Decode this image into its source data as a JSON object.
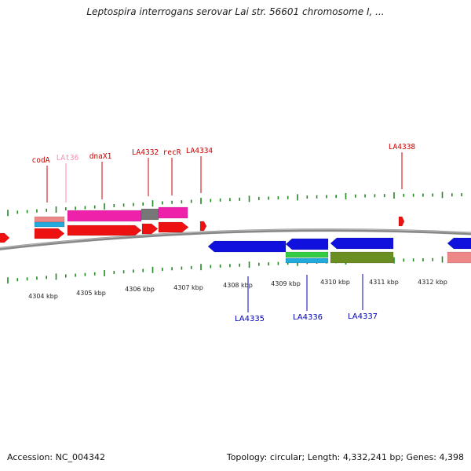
{
  "title": "Leptospira interrogans serovar Lai str. 56601 chromosome I, ...",
  "footer": {
    "accession": "Accession: NC_004342",
    "summary": "Topology: circular; Length: 4,332,241 bp; Genes: 4,398"
  },
  "colors": {
    "top_label": "#cc0000",
    "light_label": "#ff88bb",
    "bottom_label": "#0000bb",
    "tick": "#228822",
    "backbone": "#888888",
    "red_gene": "#ee1111",
    "pink_gene": "#ee22aa",
    "gray_gene": "#777777",
    "blue_gene": "#1111dd",
    "olive_gene": "#6b8e23",
    "green_gene": "#33cc44",
    "cyan_gene": "#22aadd",
    "salmon_gene": "#ee8888"
  },
  "scale_labels": [
    "4304 kbp",
    "4305 kbp",
    "4306 kbp",
    "4307 kbp",
    "4308 kbp",
    "4309 kbp",
    "4310 kbp",
    "4311 kbp",
    "4312 kbp"
  ],
  "top_gene_labels": [
    {
      "id": "codA",
      "text": "codA",
      "style": "top"
    },
    {
      "id": "lat36",
      "text": "LAt36",
      "style": "light"
    },
    {
      "id": "dnax1",
      "text": "dnaX1",
      "style": "top"
    },
    {
      "id": "la4332",
      "text": "LA4332",
      "style": "top"
    },
    {
      "id": "recr",
      "text": "recR",
      "style": "top"
    },
    {
      "id": "la4334",
      "text": "LA4334",
      "style": "top"
    },
    {
      "id": "la4338",
      "text": "LA4338",
      "style": "top"
    }
  ],
  "bottom_gene_labels": [
    {
      "id": "la4335",
      "text": "LA4335"
    },
    {
      "id": "la4336",
      "text": "LA4336"
    },
    {
      "id": "la4337",
      "text": "LA4337"
    }
  ]
}
